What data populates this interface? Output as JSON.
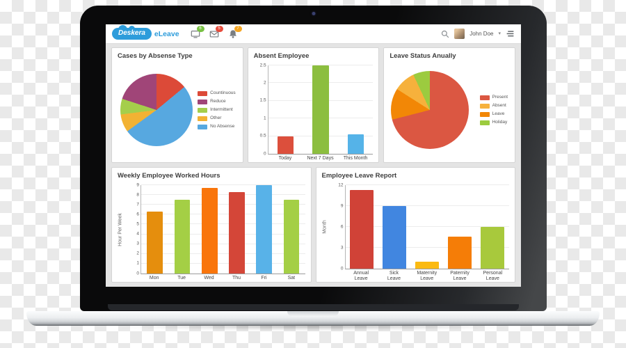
{
  "header": {
    "brand": "Deskera",
    "product": "eLeave",
    "brand_color": "#2D9CDB",
    "icons": [
      {
        "name": "chat-icon",
        "badge": "6",
        "badge_color": "#78C143"
      },
      {
        "name": "mail-icon",
        "badge": "5",
        "badge_color": "#E74C3C"
      },
      {
        "name": "bell-icon",
        "badge": "7",
        "badge_color": "#F5A623"
      }
    ],
    "user_name": "John Doe",
    "caret": "▾"
  },
  "chart_data": [
    {
      "id": "cases-by-absence-type",
      "type": "pie",
      "title": "Cases by Absense Type",
      "legend_position": "right",
      "slices": [
        {
          "label": "Countinuous",
          "value": 14,
          "color": "#DC4A38"
        },
        {
          "label": "No Absense",
          "value": 51,
          "color": "#57A8E0"
        },
        {
          "label": "Other",
          "value": 8,
          "color": "#F2B233"
        },
        {
          "label": "Intermittent",
          "value": 7,
          "color": "#A5CE4B"
        },
        {
          "label": "Reduce",
          "value": 20,
          "color": "#A04578"
        }
      ],
      "legend_order": [
        0,
        4,
        3,
        2,
        1
      ]
    },
    {
      "id": "absent-employee",
      "type": "bar",
      "title": "Absent Employee",
      "ylabel": "",
      "ylim": [
        0,
        2.5
      ],
      "yticks": [
        "0",
        "0.5",
        "1",
        "1.5",
        "2",
        "2.5"
      ],
      "grid": true,
      "bars": [
        {
          "label": "Today",
          "value": 0.5,
          "color": "#DC4F3C"
        },
        {
          "label": "Next 7 Days",
          "value": 2.5,
          "color": "#8CBE3F"
        },
        {
          "label": "This Month",
          "value": 0.55,
          "color": "#55B3E8"
        }
      ]
    },
    {
      "id": "leave-status-annually",
      "type": "pie",
      "title": "Leave Status Anually",
      "legend_position": "right",
      "slices": [
        {
          "label": "Present",
          "value": 71,
          "color": "#DB5742"
        },
        {
          "label": "Leave",
          "value": 13,
          "color": "#F28706"
        },
        {
          "label": "Absent",
          "value": 9,
          "color": "#F6B13C"
        },
        {
          "label": "Holiday",
          "value": 7,
          "color": "#9CCB3F"
        }
      ],
      "legend_order": [
        0,
        2,
        1,
        3
      ]
    },
    {
      "id": "weekly-employee-worked-hours",
      "type": "bar",
      "title": "Weekly Employee Worked Hours",
      "ylabel": "Hour Per Week",
      "ylim": [
        0,
        9
      ],
      "yticks": [
        "0",
        "1",
        "2",
        "3",
        "4",
        "5",
        "6",
        "7",
        "8",
        "9"
      ],
      "grid": true,
      "bars": [
        {
          "label": "Mon",
          "value": 6.3,
          "color": "#E58E0D"
        },
        {
          "label": "Tue",
          "value": 7.5,
          "color": "#A4CF45"
        },
        {
          "label": "Wed",
          "value": 8.7,
          "color": "#F9750B"
        },
        {
          "label": "Thu",
          "value": 8.3,
          "color": "#D44638"
        },
        {
          "label": "Fri",
          "value": 9,
          "color": "#58B2E8"
        },
        {
          "label": "Sat",
          "value": 7.5,
          "color": "#A4CF45"
        }
      ]
    },
    {
      "id": "employee-leave-report",
      "type": "bar",
      "title": "Employee Leave Report",
      "ylabel": "Month",
      "ylim": [
        0,
        12
      ],
      "yticks": [
        "0",
        "3",
        "6",
        "9",
        "12"
      ],
      "grid": true,
      "bars": [
        {
          "label": "Annual\nLeave",
          "value": 11.3,
          "color": "#D04237"
        },
        {
          "label": "Sick\nLeave",
          "value": 9,
          "color": "#4186E0"
        },
        {
          "label": "Maternity\nLeave",
          "value": 1,
          "color": "#FBBA12"
        },
        {
          "label": "Paternity\nLeave",
          "value": 4.6,
          "color": "#F57D07"
        },
        {
          "label": "Personal\nLeave",
          "value": 6,
          "color": "#A8C93C"
        }
      ]
    }
  ]
}
